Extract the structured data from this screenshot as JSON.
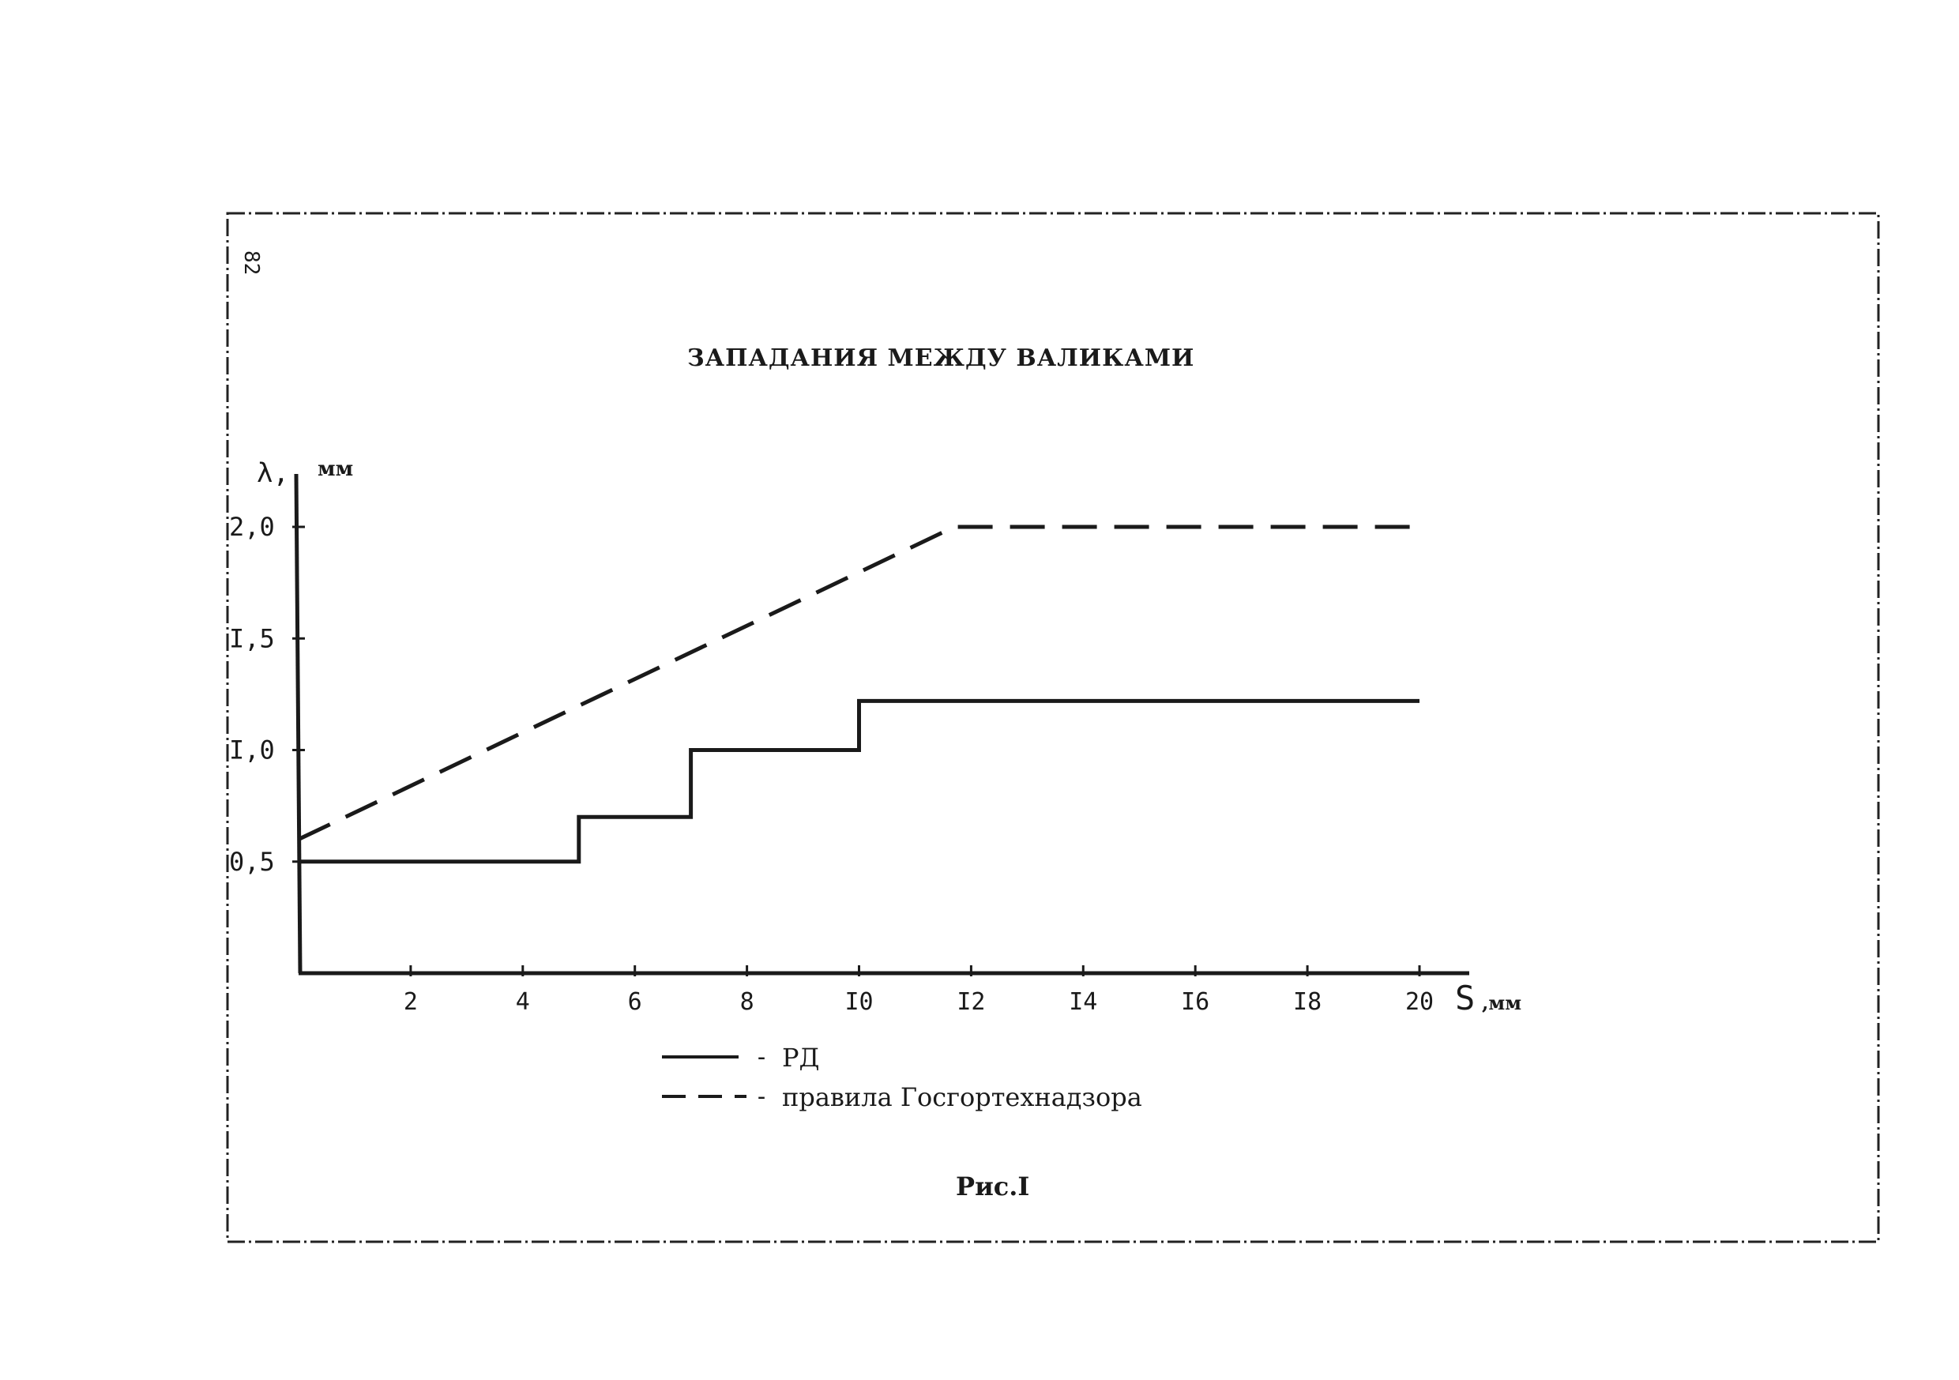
{
  "page": {
    "number": "82",
    "figure_caption": "Рис.I"
  },
  "chart_data": {
    "type": "line",
    "title": "ЗАПАДАНИЯ МЕЖДУ ВАЛИКАМИ",
    "xlabel": "S",
    "xunit": ",мм",
    "ylabel": "λ,",
    "yunit": "мм",
    "xlim": [
      0,
      20
    ],
    "ylim": [
      0,
      2.0
    ],
    "x_ticks": [
      {
        "value": 2,
        "label": "2"
      },
      {
        "value": 4,
        "label": "4"
      },
      {
        "value": 6,
        "label": "6"
      },
      {
        "value": 8,
        "label": "8"
      },
      {
        "value": 10,
        "label": "I0"
      },
      {
        "value": 12,
        "label": "I2"
      },
      {
        "value": 14,
        "label": "I4"
      },
      {
        "value": 16,
        "label": "I6"
      },
      {
        "value": 18,
        "label": "I8"
      },
      {
        "value": 20,
        "label": "20"
      }
    ],
    "y_ticks": [
      {
        "value": 0.5,
        "label": "0,5"
      },
      {
        "value": 1.0,
        "label": "I,0"
      },
      {
        "value": 1.5,
        "label": "I,5"
      },
      {
        "value": 2.0,
        "label": "2,0"
      }
    ],
    "grid": false,
    "legend_position": "bottom-left",
    "series": [
      {
        "name": "РД",
        "style": "solid",
        "x": [
          0,
          5,
          5,
          7,
          7,
          10,
          10,
          20
        ],
        "y": [
          0.5,
          0.5,
          0.7,
          0.7,
          1.0,
          1.0,
          1.22,
          1.22
        ]
      },
      {
        "name": "правила Госгортехнадзора",
        "style": "dashed",
        "x": [
          0,
          11.7,
          20
        ],
        "y": [
          0.6,
          2.0,
          2.0
        ]
      }
    ]
  }
}
